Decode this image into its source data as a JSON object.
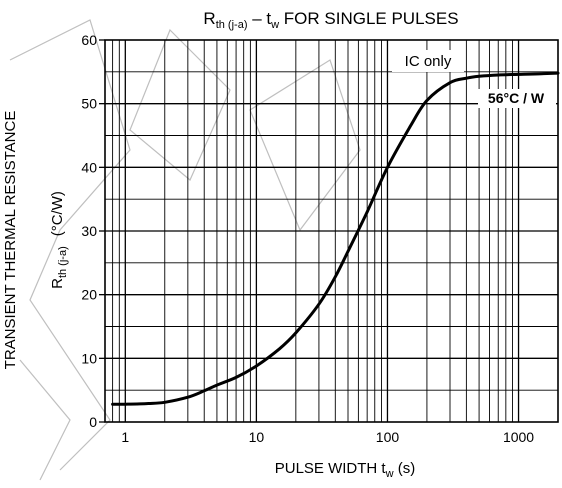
{
  "chart_data": {
    "type": "line",
    "title": {
      "prefix": "R",
      "prefix_sub": "th (j-a)",
      "middle": " – t",
      "middle_sub": "w",
      "suffix": " FOR SINGLE PULSES"
    },
    "xlabel": {
      "main": "PULSE WIDTH   t",
      "sub": "w",
      "unit": "   (s)"
    },
    "ylabel": {
      "line1": "TRANSIENT THERMAL RESISTANCE",
      "symbol": "R",
      "symbol_sub": "th (j-a)",
      "unit": "(°C/W)"
    },
    "x_scale": "log",
    "xlim": [
      0.7,
      2000
    ],
    "ylim": [
      0,
      60
    ],
    "x_ticks": [
      {
        "value": 1,
        "label": "1"
      },
      {
        "value": 10,
        "label": "10"
      },
      {
        "value": 100,
        "label": "100"
      },
      {
        "value": 1000,
        "label": "1000"
      }
    ],
    "y_ticks": [
      {
        "value": 0,
        "label": "0"
      },
      {
        "value": 10,
        "label": "10"
      },
      {
        "value": 20,
        "label": "20"
      },
      {
        "value": 30,
        "label": "30"
      },
      {
        "value": 40,
        "label": "40"
      },
      {
        "value": 50,
        "label": "50"
      },
      {
        "value": 60,
        "label": "60"
      }
    ],
    "grid": true,
    "series": [
      {
        "name": "IC only",
        "x": [
          0.8,
          1,
          1.5,
          2,
          3,
          4,
          5,
          7,
          10,
          15,
          20,
          30,
          40,
          50,
          70,
          100,
          150,
          200,
          300,
          400,
          500,
          700,
          1000,
          1500,
          2000
        ],
        "y": [
          2.8,
          2.8,
          2.9,
          3.1,
          3.9,
          4.9,
          5.8,
          7.0,
          8.8,
          11.5,
          14.0,
          18.5,
          22.8,
          26.8,
          33.0,
          40.0,
          46.5,
          50.5,
          53.3,
          54.0,
          54.3,
          54.5,
          54.6,
          54.7,
          54.8
        ]
      }
    ],
    "annotations": [
      {
        "text": "IC only",
        "style": "boxed"
      },
      {
        "text": "56°C / W",
        "style": "bold"
      }
    ]
  }
}
